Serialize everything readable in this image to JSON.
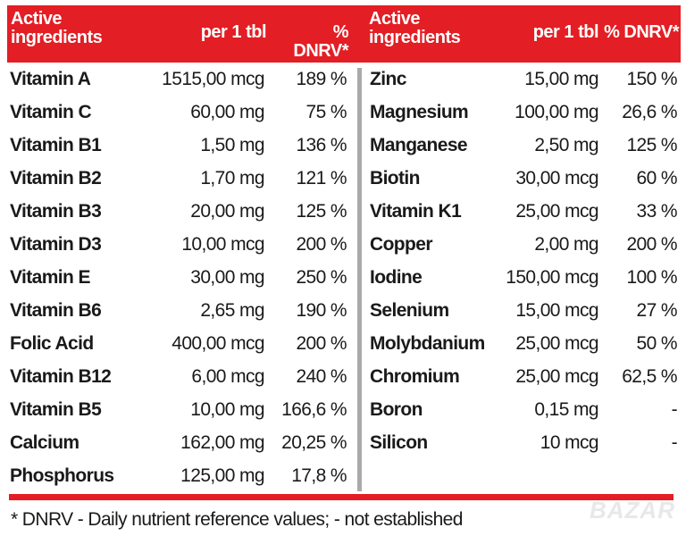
{
  "header": {
    "left": {
      "ingredients": "Active ingredients",
      "per": "per 1 tbl",
      "dnrv": "% DNRV*"
    },
    "right": {
      "ingredients": "Active ingredients",
      "per": "per 1 tbl",
      "dnrv": "% DNRV*"
    }
  },
  "left_rows": [
    {
      "name": "Vitamin A",
      "amount": "1515,00 mcg",
      "dnrv": "189 %"
    },
    {
      "name": "Vitamin C",
      "amount": "60,00 mg",
      "dnrv": "75 %"
    },
    {
      "name": "Vitamin B1",
      "amount": "1,50 mg",
      "dnrv": "136 %"
    },
    {
      "name": "Vitamin B2",
      "amount": "1,70 mg",
      "dnrv": "121 %"
    },
    {
      "name": "Vitamin B3",
      "amount": "20,00 mg",
      "dnrv": "125 %"
    },
    {
      "name": "Vitamin D3",
      "amount": "10,00 mcg",
      "dnrv": "200 %"
    },
    {
      "name": "Vitamin E",
      "amount": "30,00 mg",
      "dnrv": "250 %"
    },
    {
      "name": "Vitamin B6",
      "amount": "2,65 mg",
      "dnrv": "190 %"
    },
    {
      "name": "Folic Acid",
      "amount": "400,00 mcg",
      "dnrv": "200 %"
    },
    {
      "name": "Vitamin B12",
      "amount": "6,00 mcg",
      "dnrv": "240 %"
    },
    {
      "name": "Vitamin B5",
      "amount": "10,00 mg",
      "dnrv": "166,6 %"
    },
    {
      "name": "Calcium",
      "amount": "162,00 mg",
      "dnrv": "20,25 %"
    },
    {
      "name": "Phosphorus",
      "amount": "125,00 mg",
      "dnrv": "17,8 %"
    }
  ],
  "right_rows": [
    {
      "name": "Zinc",
      "amount": "15,00 mg",
      "dnrv": "150 %"
    },
    {
      "name": "Magnesium",
      "amount": "100,00 mg",
      "dnrv": "26,6 %"
    },
    {
      "name": "Manganese",
      "amount": "2,50 mg",
      "dnrv": "125 %"
    },
    {
      "name": "Biotin",
      "amount": "30,00 mcg",
      "dnrv": "60 %"
    },
    {
      "name": "Vitamin K1",
      "amount": "25,00 mcg",
      "dnrv": "33 %"
    },
    {
      "name": "Copper",
      "amount": "2,00 mg",
      "dnrv": "200 %"
    },
    {
      "name": "Iodine",
      "amount": "150,00 mcg",
      "dnrv": "100 %"
    },
    {
      "name": "Selenium",
      "amount": "15,00 mcg",
      "dnrv": "27 %"
    },
    {
      "name": "Molybdanium",
      "amount": "25,00 mcg",
      "dnrv": "50 %"
    },
    {
      "name": "Chromium",
      "amount": "25,00 mcg",
      "dnrv": "62,5 %"
    },
    {
      "name": "Boron",
      "amount": "0,15 mg",
      "dnrv": "-"
    },
    {
      "name": "Silicon",
      "amount": "10 mcg",
      "dnrv": "-"
    }
  ],
  "footnote": "* DNRV - Daily nutrient reference values;  - not established",
  "watermark": "BAZAR",
  "colors": {
    "accent": "#e31e24",
    "divider": "#aaaaaa"
  }
}
